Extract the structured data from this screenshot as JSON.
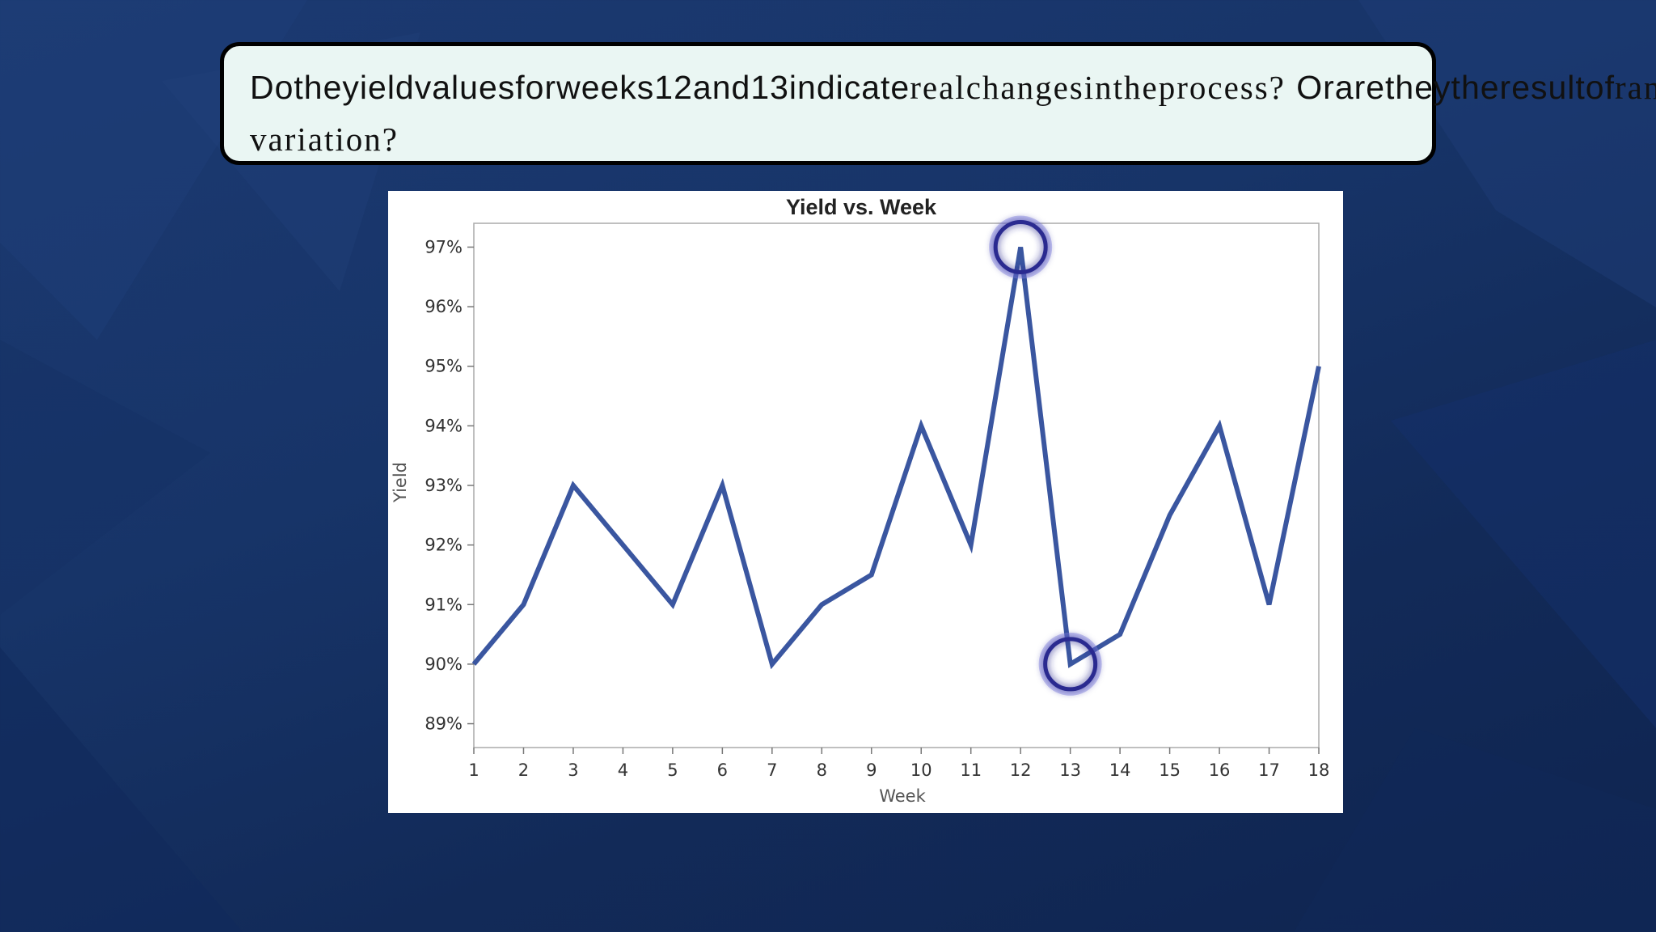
{
  "question": {
    "part1": "Dotheyieldvaluesforweeks12and13indicate",
    "part2": "realchangesintheprocess?",
    "part3": "Orarethey",
    "part4": "theresultof",
    "part5": "random variation?"
  },
  "colors": {
    "line": "#3a56a0",
    "highlight": "#2a2a90",
    "box_bg": "#eaf6f3"
  },
  "chart_data": {
    "type": "line",
    "title": "Yield vs. Week",
    "xlabel": "Week",
    "ylabel": "Yield",
    "x": [
      1,
      2,
      3,
      4,
      5,
      6,
      7,
      8,
      9,
      10,
      11,
      12,
      13,
      14,
      15,
      16,
      17,
      18
    ],
    "y_ticks": [
      "89%",
      "90%",
      "91%",
      "92%",
      "93%",
      "94%",
      "95%",
      "96%",
      "97%"
    ],
    "xlim": [
      1,
      18
    ],
    "ylim": [
      88.6,
      97.4
    ],
    "series": [
      {
        "values": [
          90,
          91,
          93,
          92,
          91,
          93,
          90,
          91,
          91.5,
          94,
          92,
          97,
          90,
          90.5,
          92.5,
          94,
          91,
          95
        ]
      }
    ],
    "highlighted_weeks": [
      12,
      13
    ],
    "grid": false
  }
}
